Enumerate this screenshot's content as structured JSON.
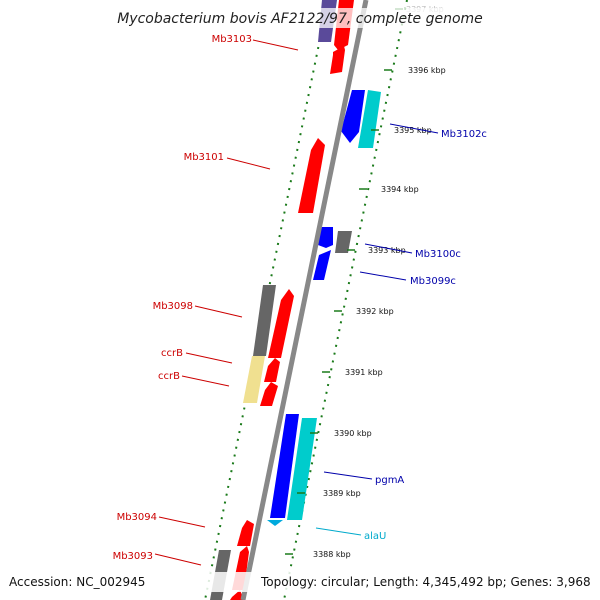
{
  "title": "Mycobacterium bovis AF2122/97, complete genome",
  "footer": {
    "accession": "Accession: NC_002945",
    "topology": "Topology: circular; Length: 4,345,492 bp; Genes: 3,968"
  },
  "colors": {
    "red": "#ff0000",
    "blue": "#0000ff",
    "cyan": "#00cccc",
    "gray": "#666666",
    "purple": "#5a4a9a",
    "yellow": "#f0e090",
    "tick": "#1a7a1a",
    "backbone": "#777777",
    "label_red": "#cc0000",
    "label_blue": "#0000aa",
    "label_cyan": "#00aacc"
  },
  "ticks": [
    {
      "label": "3397 kbp"
    },
    {
      "label": "3396 kbp"
    },
    {
      "label": "3395 kbp"
    },
    {
      "label": "3394 kbp"
    },
    {
      "label": "3393 kbp"
    },
    {
      "label": "3392 kbp"
    },
    {
      "label": "3391 kbp"
    },
    {
      "label": "3390 kbp"
    },
    {
      "label": "3389 kbp"
    },
    {
      "label": "3388 kbp"
    }
  ],
  "labels_left": [
    {
      "text": "Mb3103"
    },
    {
      "text": "Mb3101"
    },
    {
      "text": "Mb3098"
    },
    {
      "text": "ccrB"
    },
    {
      "text": "ccrB"
    },
    {
      "text": "Mb3094"
    },
    {
      "text": "Mb3093"
    }
  ],
  "labels_right": [
    {
      "text": "Mb3102c"
    },
    {
      "text": "Mb3100c"
    },
    {
      "text": "Mb3099c"
    },
    {
      "text": "pgmA"
    },
    {
      "text": "alaU"
    }
  ]
}
